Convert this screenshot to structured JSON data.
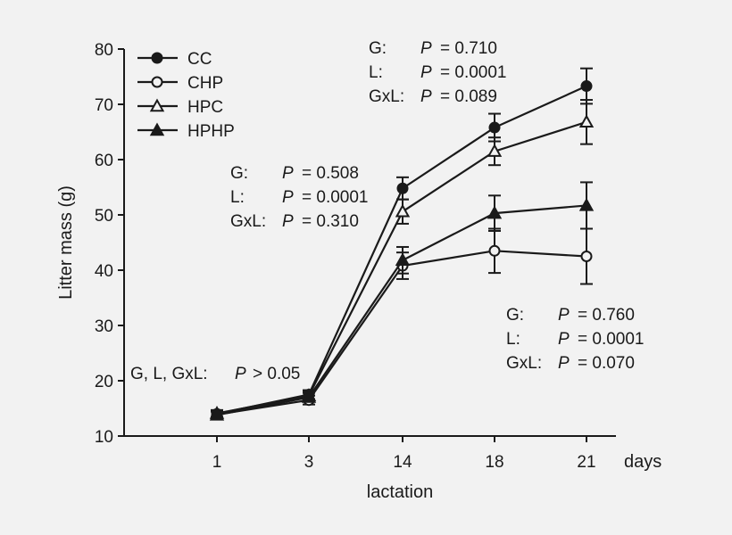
{
  "chart_data": {
    "type": "line",
    "title": "",
    "xlabel": "lactation",
    "x_unit_label": "days",
    "ylabel": "Litter mass (g)",
    "categories": [
      "1",
      "3",
      "14",
      "18",
      "21"
    ],
    "ylim": [
      10,
      80
    ],
    "yticks": [
      10,
      20,
      30,
      40,
      50,
      60,
      70,
      80
    ],
    "grid": false,
    "legend_position": "top-left",
    "series": [
      {
        "name": "CC",
        "marker": "filled-circle",
        "values": [
          14.0,
          17.5,
          54.8,
          65.8,
          73.3
        ],
        "errors": [
          0.6,
          0.8,
          2.0,
          2.5,
          3.2
        ]
      },
      {
        "name": "CHP",
        "marker": "open-circle",
        "values": [
          13.9,
          16.5,
          40.8,
          43.5,
          42.5
        ],
        "errors": [
          0.6,
          0.8,
          2.4,
          4.0,
          5.0
        ]
      },
      {
        "name": "HPC",
        "marker": "open-triangle",
        "values": [
          14.1,
          17.3,
          50.6,
          61.5,
          66.8
        ],
        "errors": [
          0.6,
          0.8,
          2.2,
          2.5,
          4.0
        ]
      },
      {
        "name": "HPHP",
        "marker": "filled-triangle",
        "values": [
          13.8,
          17.0,
          41.8,
          50.3,
          51.7
        ],
        "errors": [
          0.6,
          0.8,
          2.4,
          3.2,
          4.2
        ]
      }
    ],
    "annotations": [
      {
        "id": "a1",
        "lines": [
          {
            "label": "G, L, GxL:",
            "p": "P",
            "value": "> 0.05"
          }
        ]
      },
      {
        "id": "a2",
        "lines": [
          {
            "label": "G:",
            "p": "P",
            "value": "= 0.508"
          },
          {
            "label": "L:",
            "p": "P",
            "value": "= 0.0001"
          },
          {
            "label": "GxL:",
            "p": "P",
            "value": "= 0.310"
          }
        ]
      },
      {
        "id": "a3",
        "lines": [
          {
            "label": "G:",
            "p": "P",
            "value": "= 0.710"
          },
          {
            "label": "L:",
            "p": "P",
            "value": "= 0.0001"
          },
          {
            "label": "GxL:",
            "p": "P",
            "value": "= 0.089"
          }
        ]
      },
      {
        "id": "a4",
        "lines": [
          {
            "label": "G:",
            "p": "P",
            "value": "= 0.760"
          },
          {
            "label": "L:",
            "p": "P",
            "value": "= 0.0001"
          },
          {
            "label": "GxL:",
            "p": "P",
            "value": "= 0.070"
          }
        ]
      }
    ],
    "colors": {
      "ink": "#1a1a1a",
      "background": "#f2f2f2"
    }
  }
}
